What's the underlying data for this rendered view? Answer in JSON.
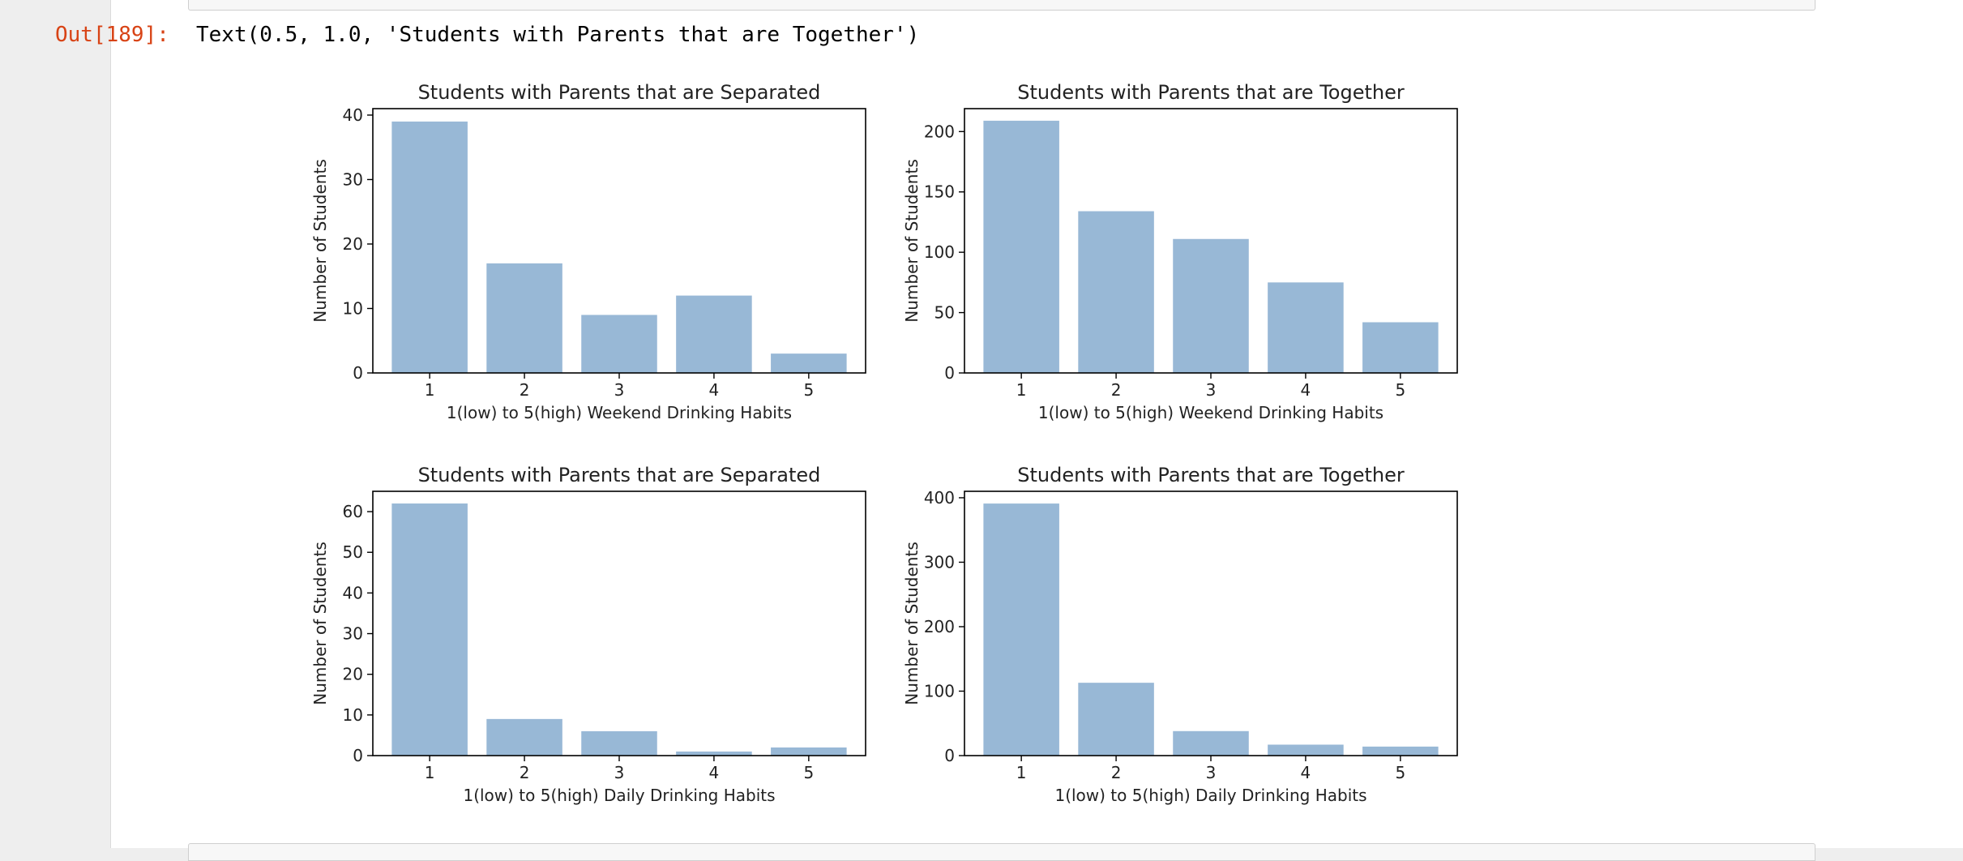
{
  "cell": {
    "prompt": "Out[189]:",
    "output_text": "Text(0.5, 1.0, 'Students with Parents that are Together')"
  },
  "colors": {
    "bar": "#98b8d6",
    "prompt": "#d84315"
  },
  "chart_data": [
    {
      "type": "bar",
      "title": "Students with Parents that are Separated",
      "xlabel": "1(low) to 5(high) Weekend Drinking Habits",
      "ylabel": "Number of Students",
      "categories": [
        "1",
        "2",
        "3",
        "4",
        "5"
      ],
      "values": [
        39,
        17,
        9,
        12,
        3
      ],
      "ylim": [
        0,
        41
      ],
      "yticks": [
        0,
        10,
        20,
        30,
        40
      ]
    },
    {
      "type": "bar",
      "title": "Students with Parents that are Together",
      "xlabel": "1(low) to 5(high) Weekend Drinking Habits",
      "ylabel": "Number of Students",
      "categories": [
        "1",
        "2",
        "3",
        "4",
        "5"
      ],
      "values": [
        209,
        134,
        111,
        75,
        42
      ],
      "ylim": [
        0,
        219
      ],
      "yticks": [
        0,
        50,
        100,
        150,
        200
      ]
    },
    {
      "type": "bar",
      "title": "Students with Parents that are Separated",
      "xlabel": "1(low) to 5(high) Daily Drinking Habits",
      "ylabel": "Number of Students",
      "categories": [
        "1",
        "2",
        "3",
        "4",
        "5"
      ],
      "values": [
        62,
        9,
        6,
        1,
        2
      ],
      "ylim": [
        0,
        65
      ],
      "yticks": [
        0,
        10,
        20,
        30,
        40,
        50,
        60
      ]
    },
    {
      "type": "bar",
      "title": "Students with Parents that are Together",
      "xlabel": "1(low) to 5(high) Daily Drinking Habits",
      "ylabel": "Number of Students",
      "categories": [
        "1",
        "2",
        "3",
        "4",
        "5"
      ],
      "values": [
        391,
        113,
        38,
        17,
        14
      ],
      "ylim": [
        0,
        410
      ],
      "yticks": [
        0,
        100,
        200,
        300,
        400
      ]
    }
  ]
}
